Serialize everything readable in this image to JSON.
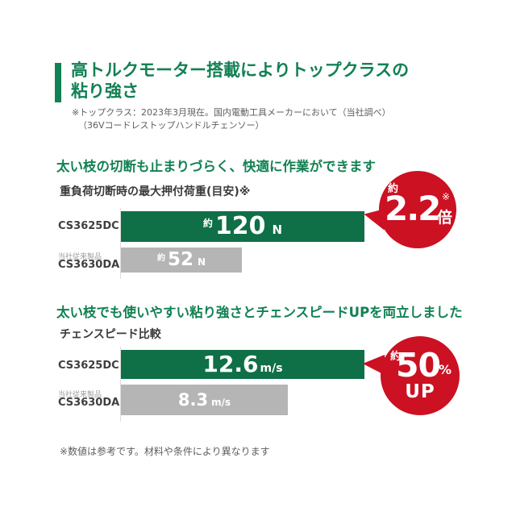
{
  "page": {
    "title": {
      "line1": "高トルクモーター搭載によりトップクラスの",
      "line2": "粘り強さ"
    },
    "title_notes": {
      "line1": "※トップクラス：2023年3月現在。国内電動工具メーカーにおいて（当社調べ）",
      "line2": "（36Vコードレストップハンドルチェンソー）"
    },
    "footer_note": "※数値は参考です。材料や条件により異なります",
    "colors": {
      "brand_green_text": "#128153",
      "bar_green": "#0f6f47",
      "bar_gray": "#b5b5b5",
      "badge_red": "#cb1122"
    }
  },
  "section1": {
    "heading": "太い枝の切断も止まりづらく、快適に作業ができます",
    "chart_title": "重負荷切断時の最大押付荷重(目安)※",
    "badge": {
      "prefix": "約",
      "value": "2.2",
      "unit": "倍",
      "note": "※"
    }
  },
  "section2": {
    "heading": "太い枝でも使いやすい粘り強さとチェンスピードUPを両立しました",
    "chart_title": "チェンスピード比較",
    "badge": {
      "prefix": "約",
      "value": "50",
      "unit": "%",
      "line2": "UP"
    }
  },
  "chart_data": [
    {
      "type": "bar",
      "orientation": "horizontal",
      "title": "重負荷切断時の最大押付荷重(目安)※",
      "unit": "N",
      "categories": [
        "CS3625DC",
        "CS3630DA（当社従来製品）"
      ],
      "values": [
        120,
        52
      ],
      "value_prefix": "約",
      "bar_colors": [
        "#0f6f47",
        "#b5b5b5"
      ],
      "callout": "約2.2倍※",
      "legend": "none",
      "grid": false,
      "rows": [
        {
          "label": "CS3625DC",
          "sublabel": "",
          "prefix": "約",
          "value": "120",
          "unit": "N",
          "numeric": 120
        },
        {
          "label": "CS3630DA",
          "sublabel": "当社従来製品",
          "prefix": "約",
          "value": "52",
          "unit": "N",
          "numeric": 52
        }
      ]
    },
    {
      "type": "bar",
      "orientation": "horizontal",
      "title": "チェンスピード比較",
      "unit": "m/s",
      "categories": [
        "CS3625DC",
        "CS3630DA（当社従来製品）"
      ],
      "values": [
        12.6,
        8.3
      ],
      "value_prefix": "",
      "bar_colors": [
        "#0f6f47",
        "#b5b5b5"
      ],
      "callout": "約50%UP",
      "legend": "none",
      "grid": false,
      "rows": [
        {
          "label": "CS3625DC",
          "sublabel": "",
          "prefix": "",
          "value": "12.6",
          "unit": "m/s",
          "numeric": 12.6
        },
        {
          "label": "CS3630DA",
          "sublabel": "当社従来製品",
          "prefix": "",
          "value": "8.3",
          "unit": "m/s",
          "numeric": 8.3
        }
      ]
    }
  ]
}
